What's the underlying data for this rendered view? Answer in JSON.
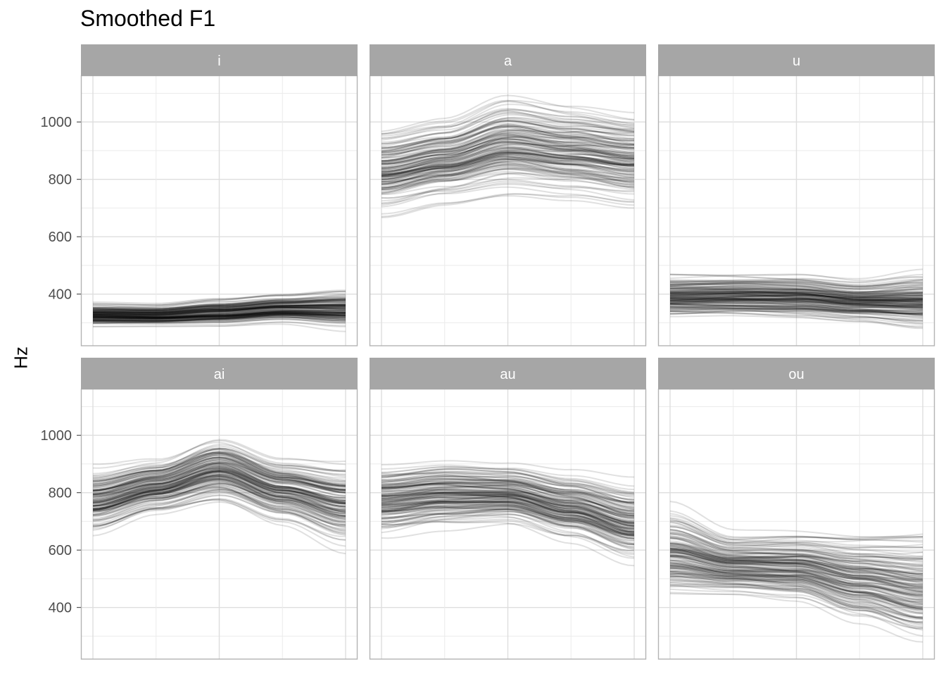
{
  "chart_data": {
    "type": "line",
    "title": "Smoothed F1",
    "ylabel": "Hz",
    "xlabel": "",
    "ylim": [
      220,
      1160
    ],
    "yticks": [
      400,
      600,
      800,
      1000
    ],
    "xlim": [
      0,
      1
    ],
    "x_ticks_shown": false,
    "grid": true,
    "line_color": "#000000",
    "line_alpha": 0.12,
    "strip_color": "#a6a6a6",
    "tracks_per_panel_approx": 150,
    "panels": [
      {
        "label": "i",
        "x": [
          0,
          0.25,
          0.5,
          0.75,
          1
        ],
        "mean": [
          312,
          315,
          318,
          335,
          350
        ],
        "band_low": [
          270,
          272,
          270,
          280,
          255
        ],
        "band_high": [
          380,
          375,
          395,
          410,
          430
        ]
      },
      {
        "label": "a",
        "x": [
          0,
          0.25,
          0.5,
          0.75,
          1
        ],
        "mean": [
          820,
          860,
          920,
          900,
          860
        ],
        "band_low": [
          660,
          700,
          720,
          700,
          670
        ],
        "band_high": [
          1000,
          1030,
          1110,
          1080,
          1060
        ]
      },
      {
        "label": "u",
        "x": [
          0,
          0.25,
          0.5,
          0.75,
          1
        ],
        "mean": [
          400,
          405,
          395,
          390,
          395
        ],
        "band_low": [
          290,
          295,
          290,
          280,
          250
        ],
        "band_high": [
          490,
          490,
          490,
          470,
          500
        ]
      },
      {
        "label": "ai",
        "x": [
          0,
          0.25,
          0.5,
          0.75,
          1
        ],
        "mean": [
          750,
          830,
          890,
          820,
          730
        ],
        "band_low": [
          620,
          690,
          720,
          650,
          560
        ],
        "band_high": [
          910,
          940,
          1020,
          950,
          940
        ]
      },
      {
        "label": "au",
        "x": [
          0,
          0.25,
          0.5,
          0.75,
          1
        ],
        "mean": [
          720,
          770,
          800,
          760,
          680
        ],
        "band_low": [
          610,
          640,
          660,
          600,
          520
        ],
        "band_high": [
          940,
          950,
          930,
          900,
          870
        ]
      },
      {
        "label": "ou",
        "x": [
          0,
          0.25,
          0.5,
          0.75,
          1
        ],
        "mean": [
          580,
          590,
          580,
          500,
          430
        ],
        "band_low": [
          410,
          420,
          400,
          320,
          250
        ],
        "band_high": [
          770,
          680,
          690,
          690,
          700
        ]
      }
    ]
  }
}
